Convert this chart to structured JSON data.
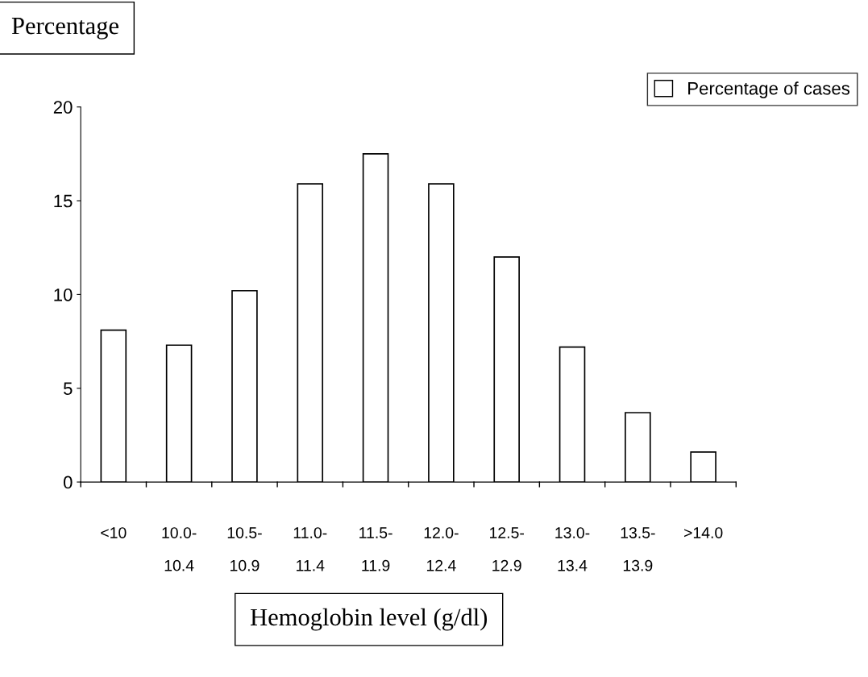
{
  "chart_data": {
    "type": "bar",
    "ylabel": "Percentage",
    "xlabel": "Hemoglobin level (g/dl)",
    "categories": [
      "<10",
      "10.0-\n10.4",
      "10.5-\n10.9",
      "11.0-\n11.4",
      "11.5-\n11.9",
      "12.0-\n12.4",
      "12.5-\n12.9",
      "13.0-\n13.4",
      "13.5-\n13.9",
      ">14.0"
    ],
    "series": [
      {
        "name": "Percentage of cases",
        "color": "#ffffff",
        "values": [
          8.1,
          7.3,
          10.2,
          15.9,
          17.5,
          15.9,
          12.0,
          7.2,
          3.7,
          1.6
        ]
      }
    ],
    "ylim": [
      0,
      20
    ],
    "yticks": [
      0,
      5,
      10,
      15,
      20
    ],
    "grid": false,
    "legend": "top right"
  }
}
